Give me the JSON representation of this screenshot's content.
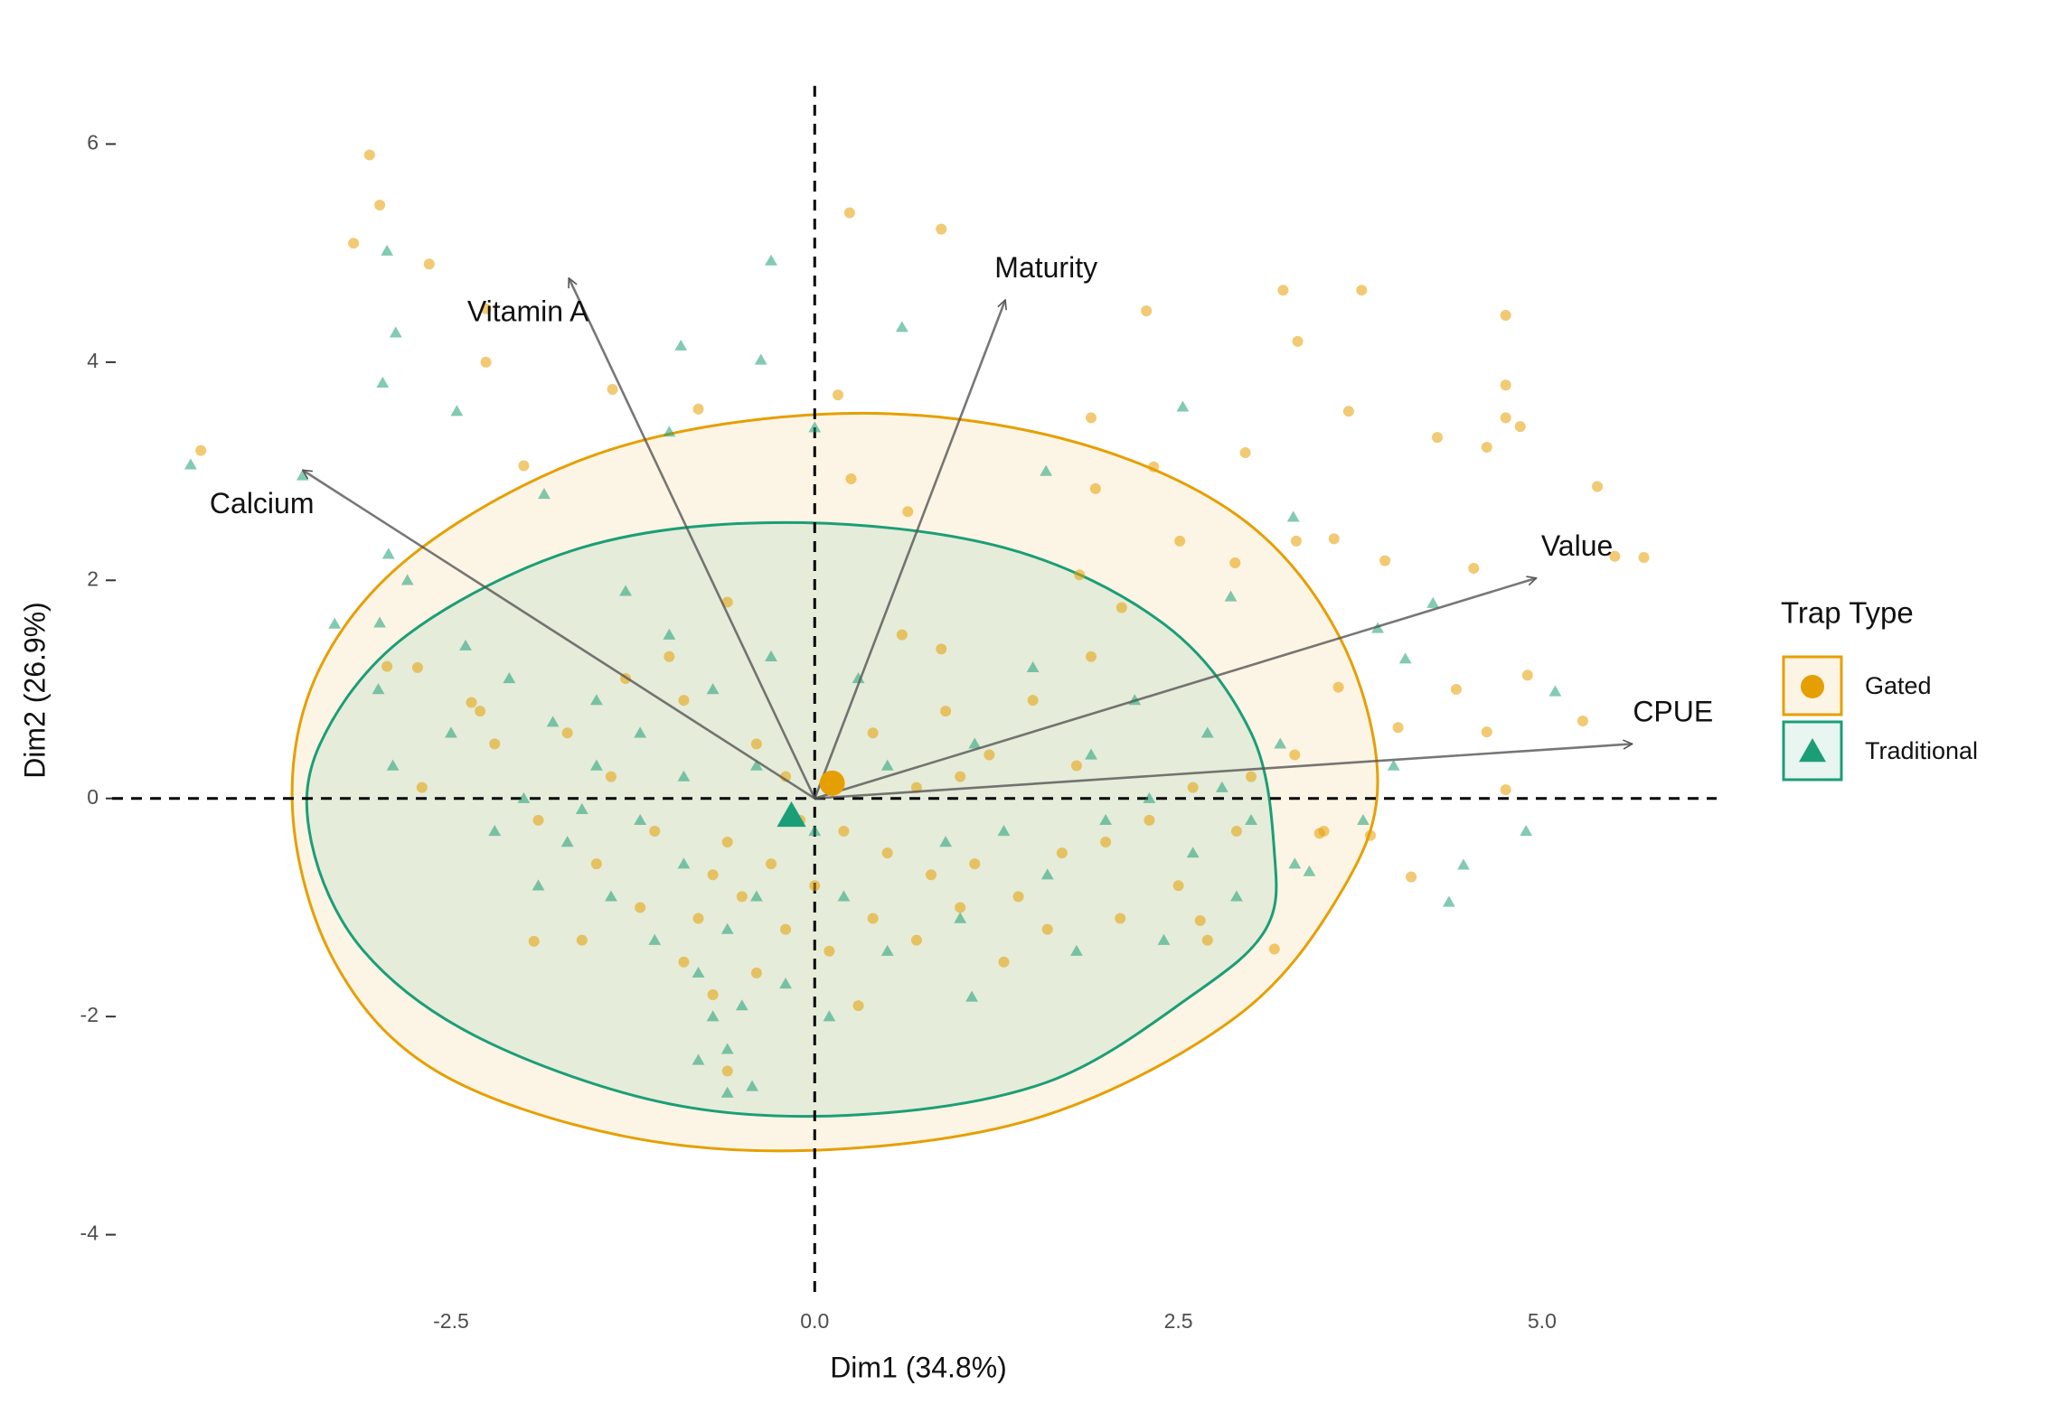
{
  "chart_data": {
    "type": "scatter",
    "x_label": "Dim1 (34.8%)",
    "y_label": "Dim2 (26.9%)",
    "xlim": [
      -4.83,
      6.2
    ],
    "ylim": [
      -4.55,
      6.6
    ],
    "xticks": [
      -2.5,
      {
        "value": 0,
        "label": "0.0"
      },
      2.5,
      {
        "value": 5,
        "label": "5.0"
      }
    ],
    "yticks": [
      -4,
      -2,
      0,
      2,
      4,
      6
    ],
    "legend_title": "Trap Type",
    "legend_position": "right",
    "series": [
      {
        "name": "Gated",
        "color": "#e69f00",
        "shape": "circle",
        "mean_x": 0.12,
        "mean_y": 0.14,
        "ellipse_x": [
          3.87,
          3.6,
          2.9,
          1.7,
          0.2,
          -1.4,
          -2.7,
          -3.4,
          -3.59,
          -3.3,
          -2.6,
          -1.3,
          0.1,
          1.6,
          2.9,
          3.6
        ],
        "ellipse_y": [
          0.15,
          1.5,
          2.6,
          3.3,
          3.53,
          3.2,
          2.3,
          1.2,
          -0.1,
          -1.5,
          -2.5,
          -3.1,
          -3.22,
          -2.9,
          -2.0,
          -0.9
        ],
        "x": [
          -3.06,
          -2.99,
          -3.17,
          -2.65,
          -2.26,
          -2.26,
          -4.22,
          -1.39,
          0.24,
          0.87,
          3.22,
          3.76,
          3.32,
          2.28,
          4.75,
          4.75,
          3.67,
          4.28,
          4.62,
          4.75,
          4.85,
          5.38,
          2.96,
          1.9,
          2.33,
          3.92,
          4.53,
          5.7,
          5.5,
          4.9,
          4.41,
          4.62,
          5.28,
          4.75,
          4.1,
          3.16,
          4.01,
          3.6,
          2.89,
          -1.93,
          -2.73,
          -2.94,
          -2.36,
          -2.0,
          -0.8,
          0.16,
          0.25,
          0.64,
          1.93,
          2.51,
          3.31,
          3.57,
          1.82,
          2.11,
          0.87,
          3.82,
          3.47,
          2.65,
          -0.5,
          -0.3,
          -0.8,
          -1.1,
          -0.6,
          -0.2,
          0.2,
          0.5,
          0.8,
          1.1,
          1.4,
          1.7,
          2.0,
          2.3,
          2.6,
          2.9,
          1.2,
          0.9,
          0.4,
          -0.4,
          -0.9,
          -1.3,
          -1.7,
          -2.2,
          -2.3,
          -1.9,
          -1.5,
          -1.2,
          -0.9,
          -0.7,
          -0.4,
          0.1,
          0.4,
          0.7,
          1.0,
          1.6,
          2.1,
          2.5,
          3.0,
          3.3,
          1.8,
          1.5,
          0.6,
          -0.6,
          -1.0,
          -0.2,
          -0.1,
          0.0,
          -0.7,
          -1.6,
          0.3,
          1.3,
          -2.7,
          -1.4,
          2.7,
          3.5,
          -0.6,
          0.7,
          1.0,
          1.9
        ],
        "y": [
          5.9,
          5.44,
          5.09,
          4.9,
          4.49,
          4.0,
          3.19,
          3.75,
          5.37,
          5.22,
          4.66,
          4.66,
          4.19,
          4.47,
          4.43,
          3.79,
          3.55,
          3.31,
          3.22,
          3.49,
          3.41,
          2.86,
          3.17,
          3.49,
          3.04,
          2.18,
          2.11,
          2.21,
          2.22,
          1.13,
          1.0,
          0.61,
          0.71,
          0.08,
          -0.72,
          -1.38,
          0.65,
          1.02,
          2.16,
          -1.31,
          1.2,
          1.21,
          0.88,
          3.05,
          3.57,
          3.7,
          2.93,
          2.63,
          2.84,
          2.36,
          2.36,
          2.38,
          2.05,
          1.75,
          1.37,
          -0.34,
          -0.32,
          -1.12,
          -0.9,
          -0.6,
          -1.1,
          -0.3,
          -0.4,
          -1.2,
          -0.3,
          -0.5,
          -0.7,
          -0.6,
          -0.9,
          -0.5,
          -0.4,
          -0.2,
          0.1,
          -0.3,
          0.4,
          0.8,
          0.6,
          0.5,
          0.9,
          1.1,
          0.6,
          0.5,
          0.8,
          -0.2,
          -0.6,
          -1.0,
          -1.5,
          -1.8,
          -1.6,
          -1.4,
          -1.1,
          -1.3,
          -1.0,
          -1.2,
          -1.1,
          -0.8,
          0.2,
          0.4,
          0.3,
          0.9,
          1.5,
          1.8,
          1.3,
          0.2,
          -0.2,
          -0.8,
          -0.7,
          -1.3,
          -1.9,
          -1.5,
          0.1,
          0.2,
          -1.3,
          -0.3,
          -2.5,
          0.1,
          0.2,
          1.3
        ]
      },
      {
        "name": "Traditional",
        "color": "#1b9e77",
        "shape": "triangle",
        "mean_x": -0.16,
        "mean_y": -0.16,
        "ellipse_x": [
          3.16,
          3.0,
          2.4,
          1.3,
          -0.2,
          -1.6,
          -2.8,
          -3.4,
          -3.46,
          -3.1,
          -2.3,
          -1.0,
          0.3,
          1.6,
          2.6,
          3.1
        ],
        "ellipse_y": [
          -0.5,
          0.6,
          1.6,
          2.3,
          2.53,
          2.3,
          1.5,
          0.5,
          -0.4,
          -1.4,
          -2.2,
          -2.8,
          -2.9,
          -2.6,
          -1.8,
          -1.2
        ],
        "x": [
          -4.29,
          -2.94,
          -2.88,
          -2.97,
          -2.46,
          -0.92,
          -0.37,
          -0.3,
          0.6,
          2.53,
          0.0,
          1.59,
          3.29,
          4.25,
          4.06,
          5.09,
          3.87,
          3.98,
          4.89,
          4.46,
          4.36,
          3.77,
          3.4,
          2.86,
          -3.52,
          -2.93,
          -2.99,
          -0.43,
          1.08,
          -1.86,
          -1.0,
          -0.9,
          -1.2,
          -1.5,
          -1.8,
          -2.1,
          -2.4,
          -1.0,
          -1.3,
          -0.7,
          -0.4,
          -0.6,
          -0.8,
          -0.7,
          -0.6,
          -0.8,
          -0.5,
          -1.1,
          -1.4,
          -1.7,
          -2.0,
          -2.5,
          -2.9,
          -3.0,
          -1.6,
          -1.2,
          0.2,
          0.5,
          0.9,
          1.3,
          1.6,
          2.0,
          2.3,
          2.6,
          2.9,
          2.7,
          3.2,
          2.2,
          1.5,
          1.1,
          0.5,
          0.0,
          -0.2,
          0.1,
          1.0,
          1.8,
          2.4,
          3.0,
          -0.3,
          0.3,
          -1.9,
          -0.9,
          -2.2,
          -1.5,
          -0.4,
          1.9,
          2.8,
          3.3,
          -2.8,
          -3.3,
          -0.6
        ],
        "y": [
          3.06,
          5.02,
          4.27,
          3.81,
          3.55,
          4.15,
          4.02,
          4.93,
          4.32,
          3.59,
          3.4,
          3.0,
          2.58,
          1.79,
          1.28,
          0.98,
          1.56,
          0.3,
          -0.3,
          -0.61,
          -0.95,
          -0.2,
          -0.67,
          1.85,
          2.96,
          2.24,
          1.61,
          -2.64,
          -1.82,
          2.79,
          3.36,
          -0.6,
          -0.2,
          0.3,
          0.7,
          1.1,
          1.4,
          1.5,
          1.9,
          1.0,
          0.3,
          -1.2,
          -1.6,
          -2.0,
          -2.3,
          -2.4,
          -1.9,
          -1.3,
          -0.9,
          -0.4,
          0.0,
          0.6,
          0.3,
          1.0,
          -0.1,
          0.6,
          -0.9,
          -1.4,
          -0.4,
          -0.3,
          -0.7,
          -0.2,
          0.0,
          -0.5,
          -0.9,
          0.6,
          0.5,
          0.9,
          1.2,
          0.5,
          0.3,
          -0.3,
          -1.7,
          -2.0,
          -1.1,
          -1.4,
          -1.3,
          -0.2,
          1.3,
          1.1,
          -0.8,
          0.2,
          -0.3,
          0.9,
          -0.9,
          0.4,
          0.1,
          -0.6,
          2.0,
          1.6,
          -2.7
        ]
      }
    ],
    "variables": [
      {
        "name": "Calcium",
        "x": -3.52,
        "y": 3.01
      },
      {
        "name": "Vitamin A",
        "x": -1.69,
        "y": 4.77
      },
      {
        "name": "Maturity",
        "x": 1.31,
        "y": 4.57
      },
      {
        "name": "Value",
        "x": 4.96,
        "y": 2.02
      },
      {
        "name": "CPUE",
        "x": 5.62,
        "y": 0.5
      }
    ]
  }
}
